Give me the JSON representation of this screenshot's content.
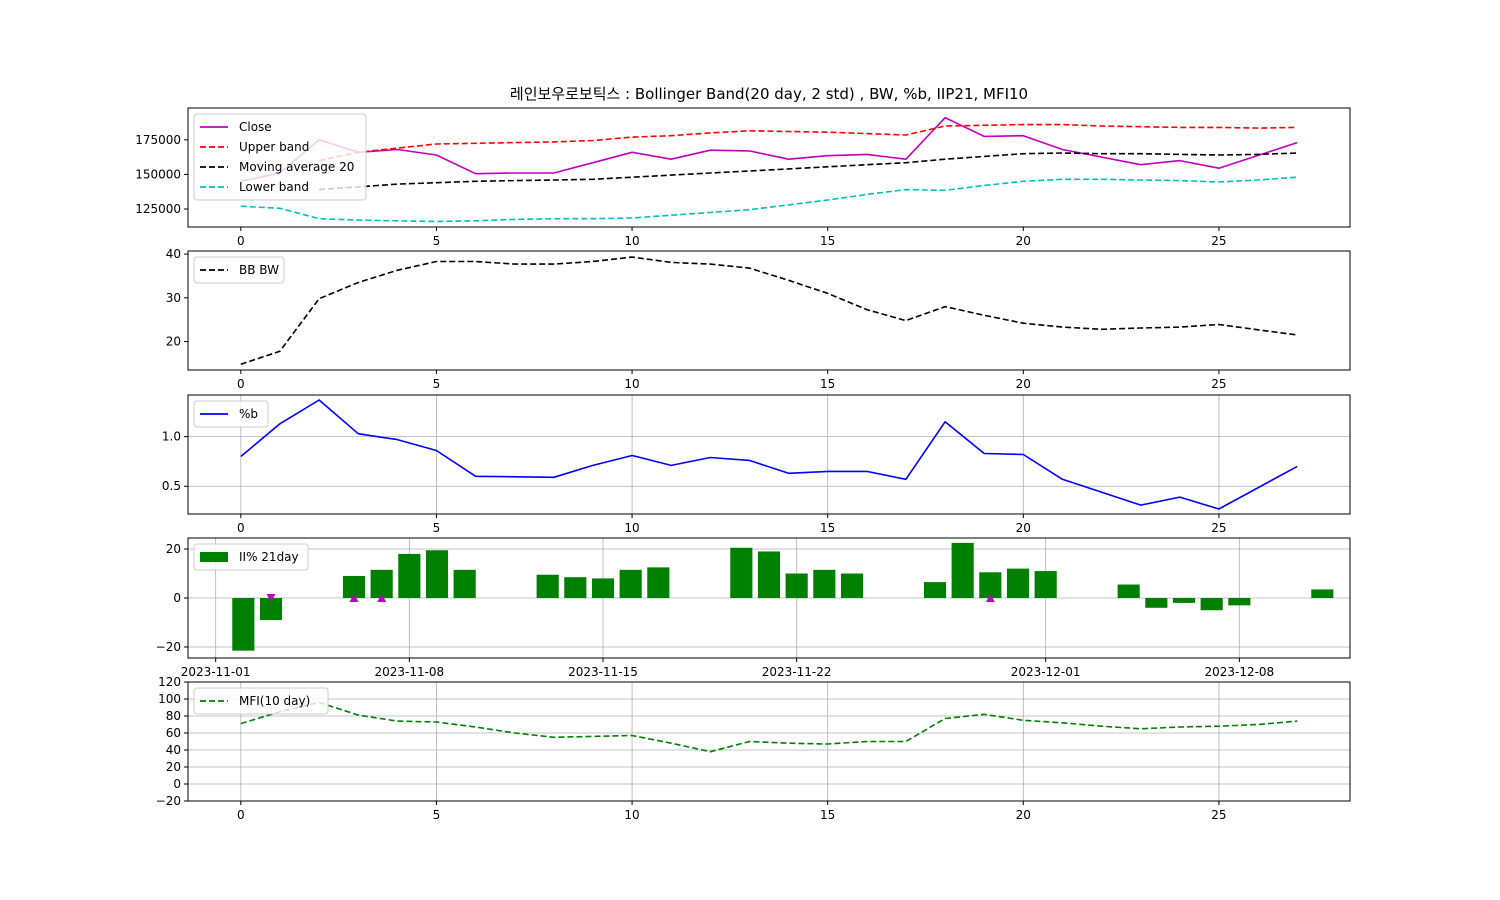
{
  "figure": {
    "title": "레인보우로보틱스 : Bollinger Band(20 day, 2 std) , BW, %b, IIP21, MFI10"
  },
  "chart_data": [
    {
      "id": "bollinger",
      "type": "line",
      "x": [
        0,
        1,
        2,
        3,
        4,
        5,
        6,
        7,
        8,
        9,
        10,
        11,
        12,
        13,
        14,
        15,
        16,
        17,
        18,
        19,
        20,
        21,
        22,
        23,
        24,
        25,
        26,
        27
      ],
      "series": [
        {
          "name": "Close",
          "color": "#bf00bf",
          "dash": "solid",
          "values": [
            145000,
            151000,
            175000,
            166000,
            168000,
            164000,
            150500,
            151000,
            151000,
            158500,
            166000,
            161000,
            167500,
            167000,
            161000,
            163500,
            164500,
            161000,
            191000,
            177500,
            178000,
            168000,
            null,
            157000,
            160000,
            154500,
            null,
            173000
          ]
        },
        {
          "name": "Upper band",
          "color": "#ff0000",
          "dash": "dashed",
          "values": [
            null,
            null,
            160000,
            166000,
            169000,
            172000,
            172500,
            173000,
            173500,
            174500,
            177000,
            178000,
            180000,
            181500,
            181000,
            180500,
            179500,
            178500,
            185000,
            185500,
            186000,
            186000,
            185000,
            184500,
            184000,
            184000,
            183500,
            184000
          ]
        },
        {
          "name": "Moving average 20",
          "color": "#000000",
          "dash": "dashed",
          "values": [
            null,
            null,
            139000,
            141000,
            143000,
            144000,
            145000,
            145500,
            146000,
            146500,
            148000,
            149500,
            151000,
            152500,
            154000,
            155500,
            157000,
            158500,
            161000,
            163000,
            165000,
            165500,
            165000,
            165000,
            164500,
            164000,
            164500,
            165500
          ]
        },
        {
          "name": "Lower band",
          "color": "#00bfbf",
          "dash": "dashed",
          "values": [
            127000,
            125500,
            118000,
            117000,
            116500,
            116000,
            116500,
            117500,
            118000,
            118000,
            118500,
            120500,
            122500,
            124500,
            128000,
            131500,
            135500,
            139000,
            138500,
            142000,
            145000,
            146500,
            146500,
            146000,
            145500,
            144500,
            146000,
            148000
          ]
        }
      ],
      "xlim": [
        -1.35,
        28.35
      ],
      "ylim": [
        112000,
        198000
      ],
      "xticks": [
        0,
        5,
        10,
        15,
        20,
        25
      ],
      "yticks": [
        125000,
        150000,
        175000
      ],
      "grid": false,
      "legend": "upper-left"
    },
    {
      "id": "bandwidth",
      "type": "line",
      "x": [
        0,
        1,
        2,
        3,
        4,
        5,
        6,
        7,
        8,
        9,
        10,
        11,
        12,
        13,
        14,
        15,
        16,
        17,
        18,
        19,
        20,
        21,
        22,
        23,
        24,
        25,
        26,
        27
      ],
      "series": [
        {
          "name": "BB BW",
          "color": "#000000",
          "dash": "dashed",
          "values": [
            14.8,
            17.8,
            29.8,
            33.5,
            36.3,
            38.3,
            38.3,
            37.7,
            37.7,
            38.3,
            39.3,
            38.1,
            37.7,
            36.8,
            34.0,
            31.0,
            27.3,
            24.8,
            28.0,
            26.0,
            24.2,
            23.3,
            22.8,
            23.1,
            23.3,
            23.9,
            22.7,
            21.5
          ]
        }
      ],
      "xlim": [
        -1.35,
        28.35
      ],
      "ylim": [
        13.5,
        40.7
      ],
      "xticks": [
        0,
        5,
        10,
        15,
        20,
        25
      ],
      "yticks": [
        20,
        30,
        40
      ],
      "grid": false,
      "legend": "upper-left"
    },
    {
      "id": "percent-b",
      "type": "line",
      "x": [
        0,
        1,
        2,
        3,
        4,
        5,
        6,
        7,
        8,
        9,
        10,
        11,
        12,
        13,
        14,
        15,
        16,
        17,
        18,
        19,
        20,
        21,
        22,
        23,
        24,
        25,
        26,
        27
      ],
      "series": [
        {
          "name": "%b",
          "color": "#0000ff",
          "dash": "solid",
          "values": [
            0.8,
            1.13,
            1.37,
            1.03,
            0.97,
            0.86,
            0.6,
            null,
            0.59,
            0.71,
            0.81,
            0.71,
            0.79,
            0.76,
            0.63,
            0.65,
            0.65,
            0.57,
            1.15,
            0.83,
            0.82,
            0.57,
            null,
            0.31,
            0.39,
            0.27,
            null,
            0.7
          ]
        }
      ],
      "xlim": [
        -1.35,
        28.35
      ],
      "ylim": [
        0.22,
        1.42
      ],
      "xticks": [
        0,
        5,
        10,
        15,
        20,
        25
      ],
      "yticks": [
        0.5,
        1.0
      ],
      "ytick_labels": [
        "0.5",
        "1.0"
      ],
      "grid": true,
      "legend": "upper-left"
    },
    {
      "id": "iip21",
      "type": "bar",
      "x_dates": [
        "2023-11-02",
        "2023-11-03",
        "2023-11-06",
        "2023-11-07",
        "2023-11-08",
        "2023-11-09",
        "2023-11-10",
        "2023-11-13",
        "2023-11-14",
        "2023-11-15",
        "2023-11-16",
        "2023-11-17",
        "2023-11-20",
        "2023-11-21",
        "2023-11-22",
        "2023-11-23",
        "2023-11-24",
        "2023-11-27",
        "2023-11-28",
        "2023-11-29",
        "2023-11-30",
        "2023-12-01",
        "2023-12-04",
        "2023-12-05",
        "2023-12-06",
        "2023-12-07",
        "2023-12-08",
        "2023-12-11"
      ],
      "series": [
        {
          "name": "II% 21day",
          "color": "#008000",
          "values": [
            -21.5,
            -9.0,
            9.0,
            11.5,
            18.0,
            19.5,
            11.5,
            9.5,
            8.5,
            8.0,
            11.5,
            12.5,
            20.5,
            19.0,
            10.0,
            11.5,
            10.0,
            6.5,
            22.5,
            10.5,
            12.0,
            11.0,
            5.5,
            -4.0,
            -2.0,
            -5.0,
            -3.0,
            3.5
          ]
        }
      ],
      "markers": [
        {
          "date": "2023-11-03",
          "value": 0,
          "symbol": "triangle-down",
          "color": "#bf00bf"
        },
        {
          "date": "2023-11-06",
          "value": 0,
          "symbol": "triangle-up",
          "color": "#bf00bf"
        },
        {
          "date": "2023-11-07",
          "value": 0,
          "symbol": "triangle-up",
          "color": "#bf00bf"
        },
        {
          "date": "2023-11-29",
          "value": 0,
          "symbol": "triangle-up",
          "color": "#bf00bf"
        }
      ],
      "xlim": [
        "2023-10-31",
        "2023-12-12"
      ],
      "ylim": [
        -24.5,
        24.5
      ],
      "xticks": [
        "2023-11-01",
        "2023-11-08",
        "2023-11-15",
        "2023-11-22",
        "2023-12-01",
        "2023-12-08"
      ],
      "yticks": [
        -20,
        0,
        20
      ],
      "ytick_labels": [
        "−20",
        "0",
        "20"
      ],
      "grid": true,
      "legend": "upper-left"
    },
    {
      "id": "mfi10",
      "type": "line",
      "x": [
        0,
        1,
        2,
        3,
        4,
        5,
        6,
        7,
        8,
        9,
        10,
        11,
        12,
        13,
        14,
        15,
        16,
        17,
        18,
        19,
        20,
        21,
        22,
        23,
        24,
        25,
        26,
        27
      ],
      "series": [
        {
          "name": "MFI(10 day)",
          "color": "#008000",
          "dash": "dashed",
          "values": [
            71,
            85,
            96,
            81,
            74,
            73,
            67,
            60,
            55,
            56,
            57,
            48,
            38,
            50,
            48,
            47,
            50,
            50,
            77,
            82,
            75,
            72,
            68,
            65,
            67,
            68,
            70,
            74
          ]
        }
      ],
      "xlim": [
        -1.35,
        28.35
      ],
      "ylim": [
        -20,
        120
      ],
      "xticks": [
        0,
        5,
        10,
        15,
        20,
        25
      ],
      "yticks": [
        -20,
        0,
        20,
        40,
        60,
        80,
        100,
        120
      ],
      "ytick_labels": [
        "−20",
        "0",
        "20",
        "40",
        "60",
        "80",
        "100",
        "120"
      ],
      "grid": true,
      "legend": "upper-left"
    }
  ]
}
